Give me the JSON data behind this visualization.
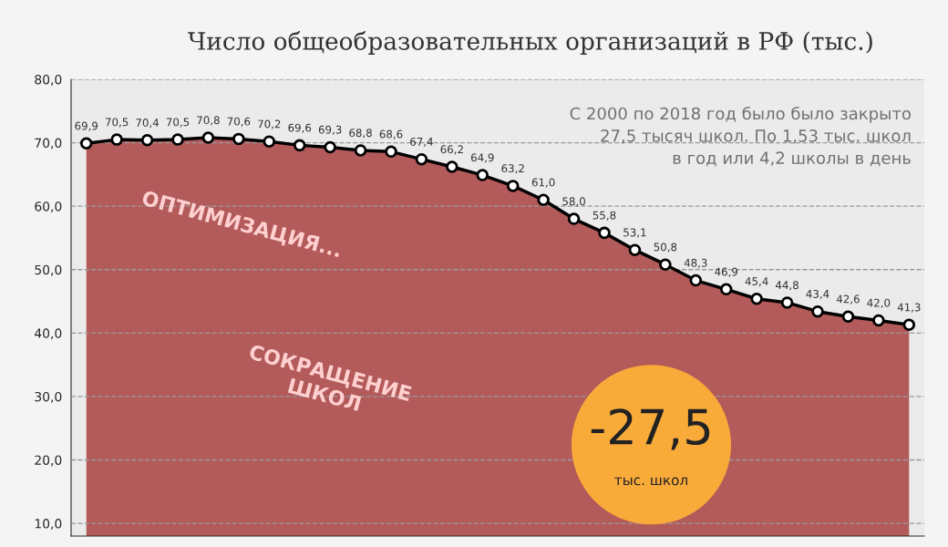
{
  "chart_data": {
    "type": "area",
    "title": "Число общеобразовательных организаций в РФ (тыс.)",
    "categories": [
      null,
      null,
      null,
      null,
      null,
      null,
      null,
      null,
      null,
      null,
      null,
      null,
      null,
      null,
      null,
      null,
      null,
      null,
      null,
      null,
      null,
      null,
      null,
      null,
      null,
      null,
      null,
      null
    ],
    "series": [
      {
        "color": "#b35a5a",
        "marker": "circle",
        "values": [
          69.9,
          70.5,
          70.4,
          70.5,
          70.8,
          70.6,
          70.2,
          69.6,
          69.3,
          68.8,
          68.6,
          67.4,
          66.2,
          64.9,
          63.2,
          61.0,
          58.0,
          55.8,
          53.1,
          50.8,
          48.3,
          46.9,
          45.4,
          44.8,
          43.4,
          42.6,
          42.0,
          41.3
        ],
        "value_labels": [
          "69,9",
          "70,5",
          "70,4",
          "70,5",
          "70,8",
          "70,6",
          "70,2",
          "69,6",
          "69,3",
          "68,8",
          "68,6",
          "67,4",
          "66,2",
          "64,9",
          "63,2",
          "61,0",
          "58,0",
          "55,8",
          "53,1",
          "50,8",
          "48,3",
          "46,9",
          "45,4",
          "44,8",
          "43,4",
          "42,6",
          "42,0",
          "41,3"
        ]
      }
    ],
    "ylim": [
      8,
      80
    ],
    "yticks": [
      {
        "value": 10,
        "label": "10,0"
      },
      {
        "value": 20,
        "label": "20,0"
      },
      {
        "value": 30,
        "label": "30,0"
      },
      {
        "value": 40,
        "label": "40,0"
      },
      {
        "value": 50,
        "label": "50,0"
      },
      {
        "value": 60,
        "label": "60,0"
      },
      {
        "value": 70,
        "label": "70,0"
      },
      {
        "value": 80,
        "label": "80,0"
      }
    ],
    "tick_labels": "y",
    "grid": "y",
    "annotations": [
      "С 2000 по 2018 год было было закрыто\n27,5 тысяч школ. По 1,53 тыс. школ\nв год или 4,2 школы в день",
      "ОПТИМИЗАЦИЯ...",
      "СОКРАЩЕНИЕ\nШКОЛ",
      "-27,5",
      "тыс. школ"
    ]
  }
}
